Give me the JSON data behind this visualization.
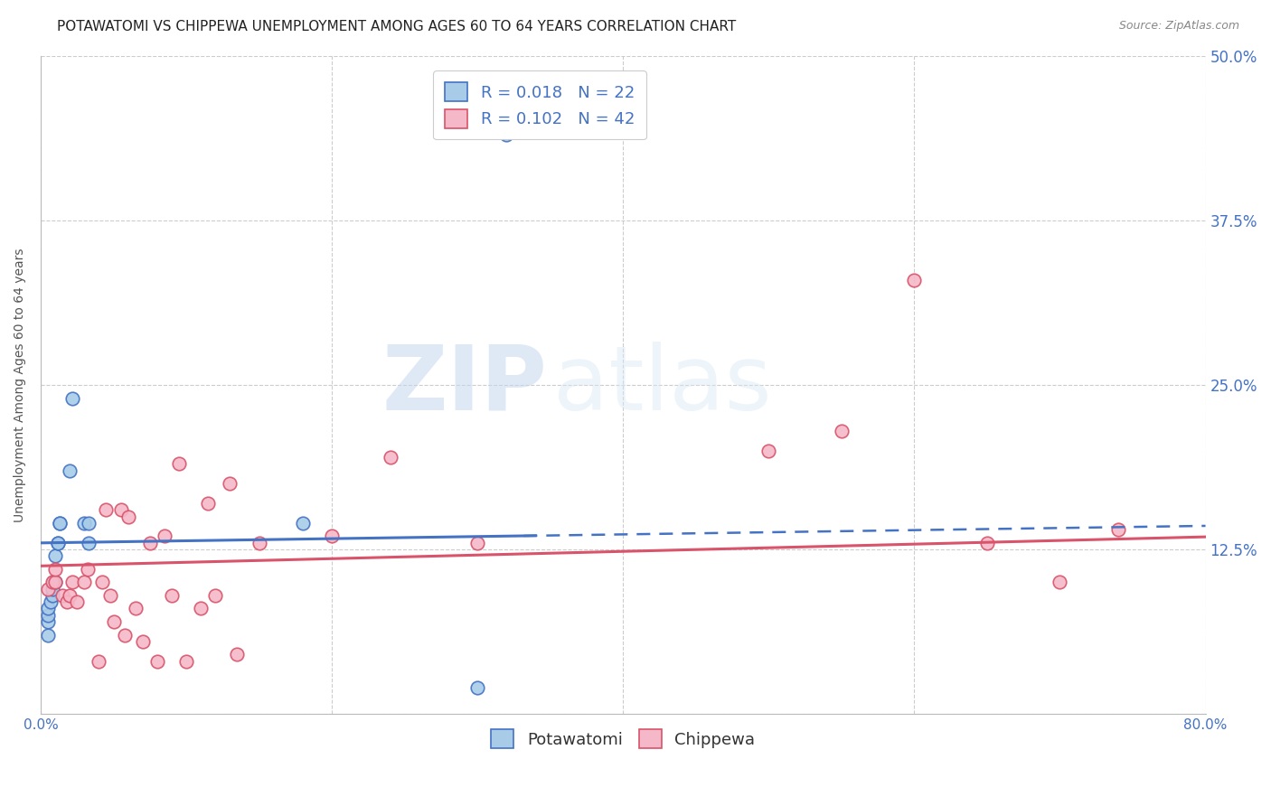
{
  "title": "POTAWATOMI VS CHIPPEWA UNEMPLOYMENT AMONG AGES 60 TO 64 YEARS CORRELATION CHART",
  "source": "Source: ZipAtlas.com",
  "ylabel": "Unemployment Among Ages 60 to 64 years",
  "xlim": [
    0.0,
    0.8
  ],
  "ylim": [
    0.0,
    0.5
  ],
  "yticks": [
    0.0,
    0.125,
    0.25,
    0.375,
    0.5
  ],
  "ytick_labels": [
    "",
    "12.5%",
    "25.0%",
    "37.5%",
    "50.0%"
  ],
  "xticks": [
    0.0,
    0.2,
    0.4,
    0.6,
    0.8
  ],
  "xtick_labels": [
    "0.0%",
    "",
    "",
    "",
    "80.0%"
  ],
  "potawatomi_color": "#a8cce8",
  "chippewa_color": "#f5b8c8",
  "trend_potawatomi_color": "#4472c4",
  "trend_chippewa_color": "#d9536a",
  "R_potawatomi": 0.018,
  "N_potawatomi": 22,
  "R_chippewa": 0.102,
  "N_chippewa": 42,
  "potawatomi_x": [
    0.005,
    0.005,
    0.005,
    0.005,
    0.007,
    0.008,
    0.008,
    0.009,
    0.01,
    0.01,
    0.012,
    0.012,
    0.013,
    0.013,
    0.02,
    0.022,
    0.03,
    0.033,
    0.033,
    0.18,
    0.3,
    0.32
  ],
  "potawatomi_y": [
    0.06,
    0.07,
    0.075,
    0.08,
    0.085,
    0.09,
    0.095,
    0.1,
    0.1,
    0.12,
    0.13,
    0.13,
    0.145,
    0.145,
    0.185,
    0.24,
    0.145,
    0.13,
    0.145,
    0.145,
    0.02,
    0.44
  ],
  "chippewa_x": [
    0.005,
    0.008,
    0.01,
    0.01,
    0.015,
    0.018,
    0.02,
    0.022,
    0.025,
    0.03,
    0.032,
    0.04,
    0.042,
    0.045,
    0.048,
    0.05,
    0.055,
    0.058,
    0.06,
    0.065,
    0.07,
    0.075,
    0.08,
    0.085,
    0.09,
    0.095,
    0.1,
    0.11,
    0.115,
    0.12,
    0.13,
    0.135,
    0.15,
    0.2,
    0.24,
    0.3,
    0.5,
    0.55,
    0.6,
    0.65,
    0.7,
    0.74
  ],
  "chippewa_y": [
    0.095,
    0.1,
    0.1,
    0.11,
    0.09,
    0.085,
    0.09,
    0.1,
    0.085,
    0.1,
    0.11,
    0.04,
    0.1,
    0.155,
    0.09,
    0.07,
    0.155,
    0.06,
    0.15,
    0.08,
    0.055,
    0.13,
    0.04,
    0.135,
    0.09,
    0.19,
    0.04,
    0.08,
    0.16,
    0.09,
    0.175,
    0.045,
    0.13,
    0.135,
    0.195,
    0.13,
    0.2,
    0.215,
    0.33,
    0.13,
    0.1,
    0.14
  ],
  "watermark_zip": "ZIP",
  "watermark_atlas": "atlas",
  "background_color": "#ffffff",
  "grid_color": "#cccccc",
  "title_fontsize": 11,
  "axis_label_fontsize": 10,
  "tick_label_fontsize": 11,
  "legend_fontsize": 13,
  "marker_size": 110
}
